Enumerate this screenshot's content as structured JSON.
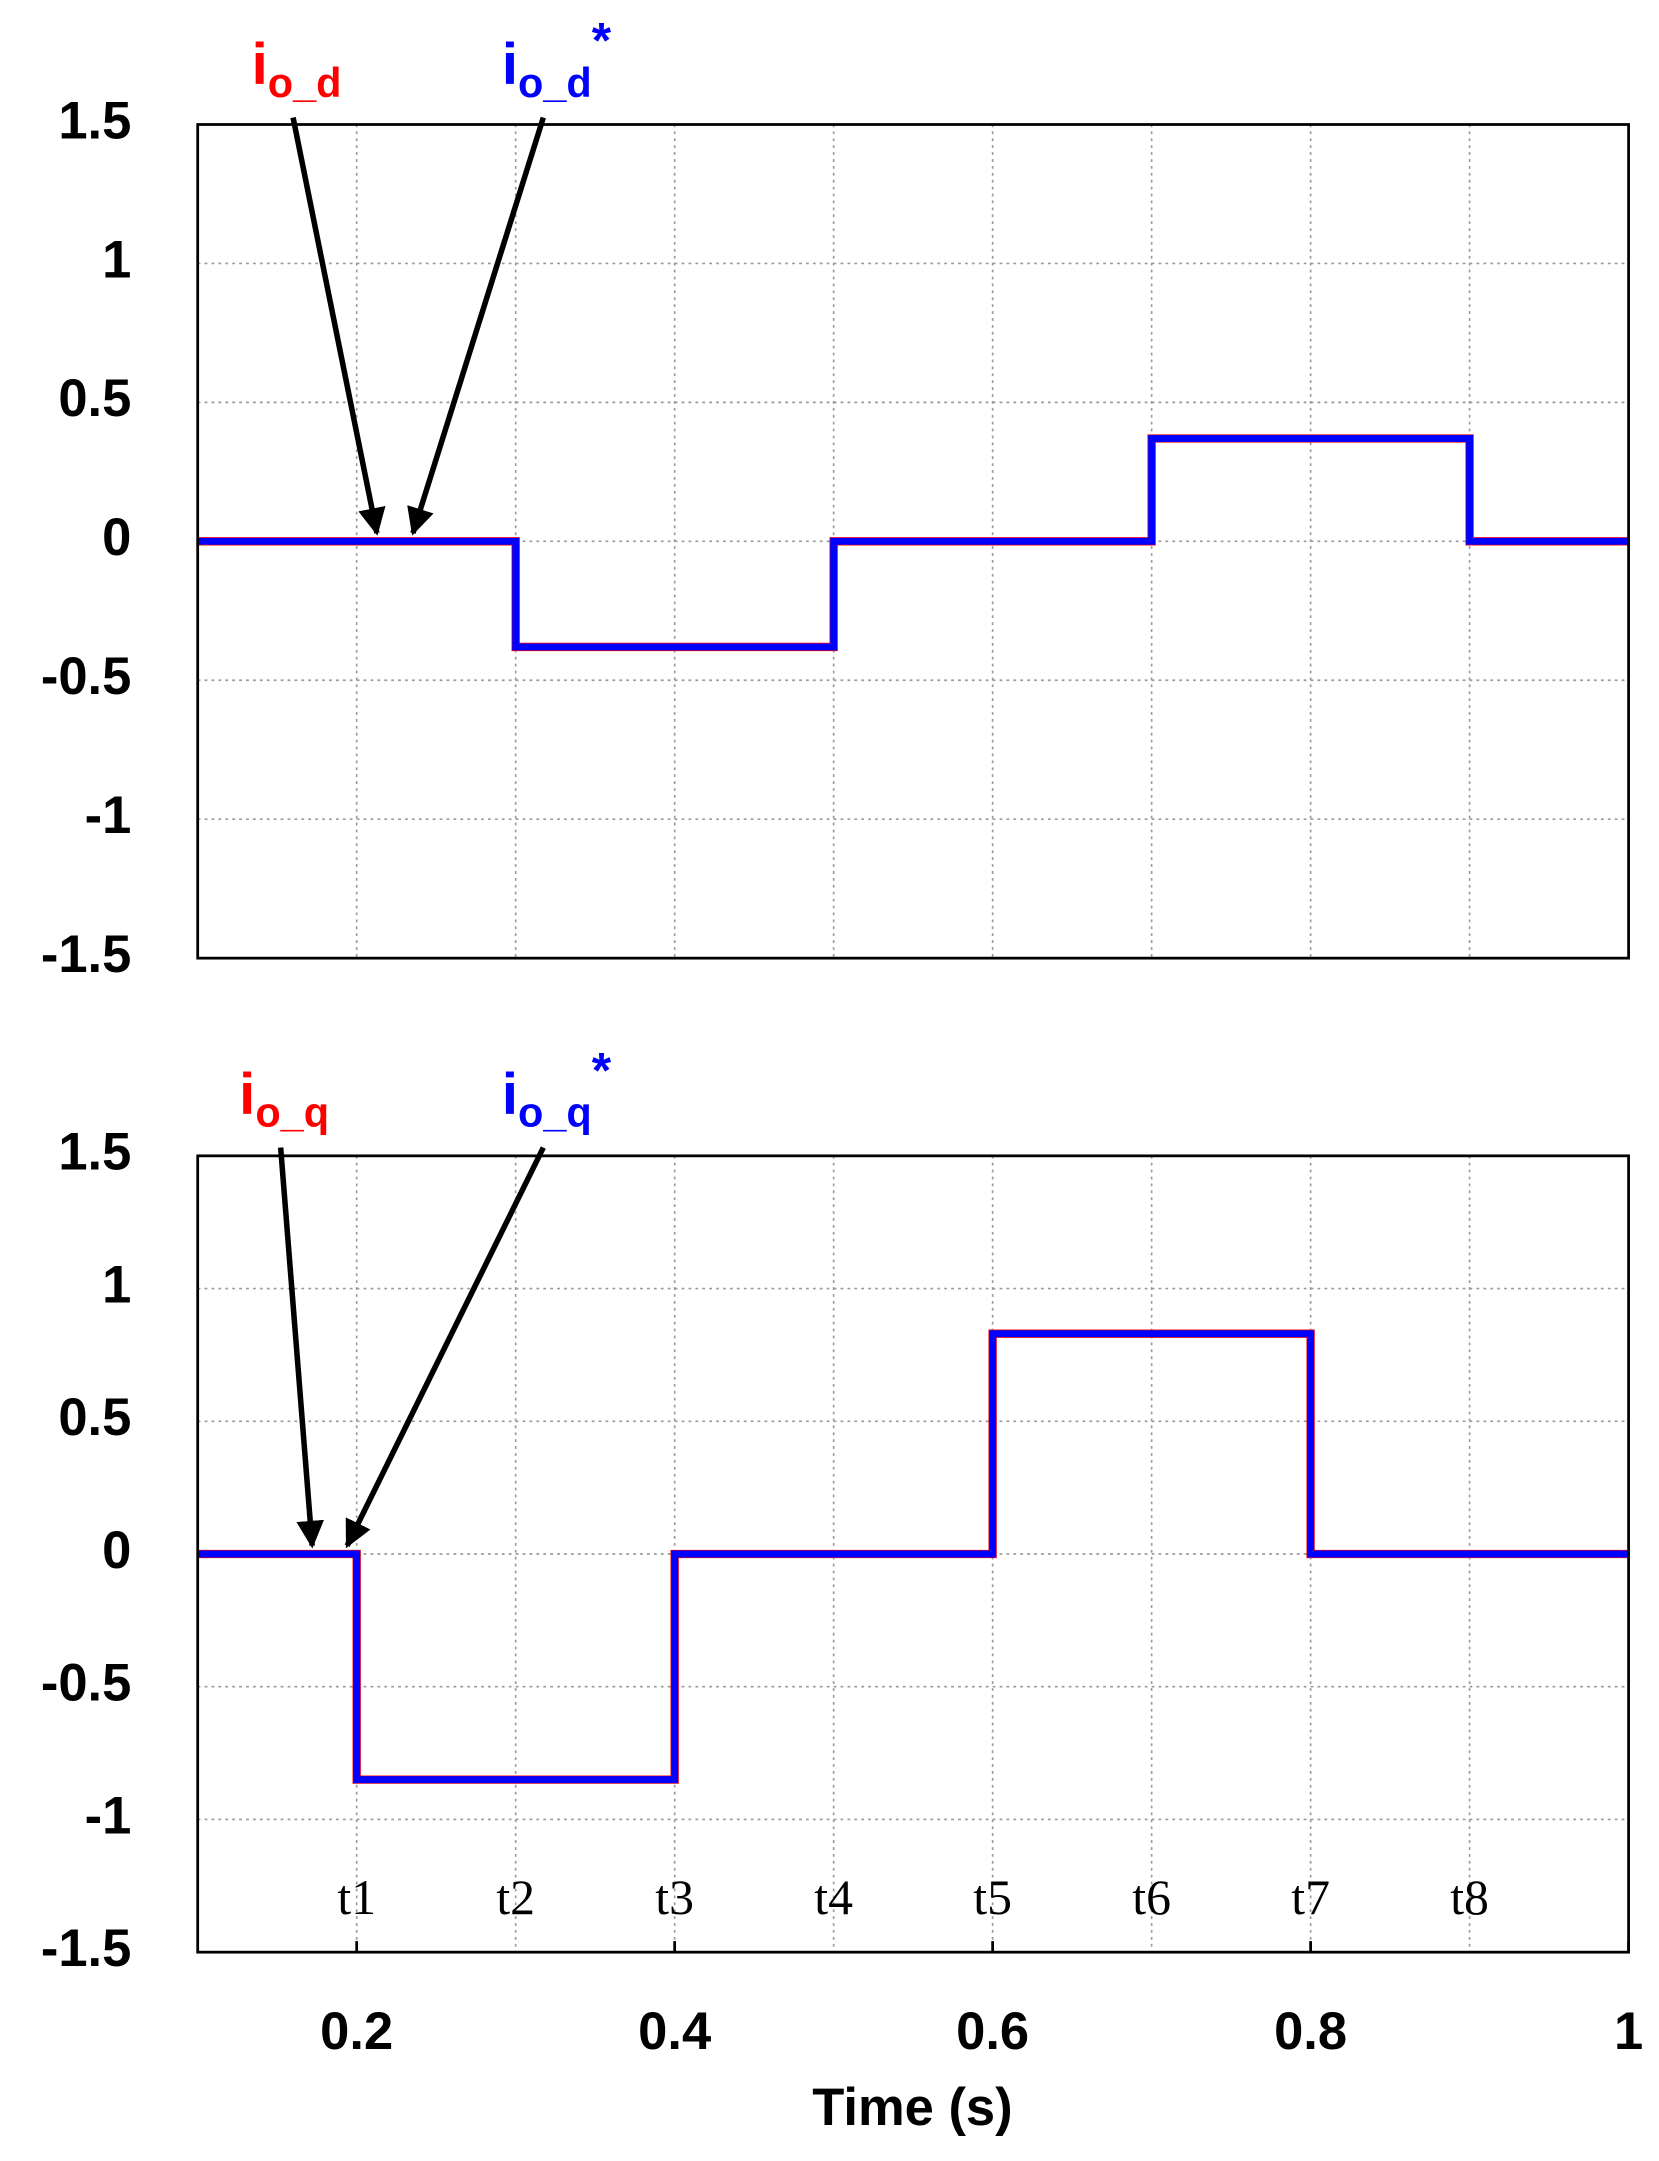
{
  "chart_data": [
    {
      "type": "line",
      "x": [
        0.1,
        0.3,
        0.3,
        0.5,
        0.5,
        0.7,
        0.7,
        0.9,
        0.9,
        1
      ],
      "series": [
        {
          "name": [
            "i",
            "o_d"
          ],
          "color": "#ff0000",
          "values": [
            0,
            0,
            -0.38,
            -0.38,
            0,
            0,
            0.37,
            0.37,
            0,
            0
          ],
          "arrow_to": [
            0.2127,
            0
          ]
        },
        {
          "name": [
            "i",
            "o_d",
            "*"
          ],
          "color": "#0000ff",
          "values": [
            0,
            0,
            -0.38,
            -0.38,
            0,
            0,
            0.37,
            0.37,
            0,
            0
          ],
          "arrow_to": [
            0.2354,
            0
          ]
        }
      ],
      "xlim": [
        0.1,
        1
      ],
      "xgrid": [
        0.2,
        0.3,
        0.4,
        0.5,
        0.6,
        0.7,
        0.8,
        0.9
      ],
      "ylim": [
        -1.5,
        1.5
      ],
      "yticks": [
        -1.5,
        -1,
        -0.5,
        0,
        0.5,
        1,
        1.5
      ],
      "grid": true
    },
    {
      "type": "line",
      "x": [
        0.1,
        0.2,
        0.2,
        0.4,
        0.4,
        0.6,
        0.6,
        0.8,
        0.8,
        1
      ],
      "series": [
        {
          "name": [
            "i",
            "o_q"
          ],
          "color": "#ff0000",
          "values": [
            0,
            0,
            -0.85,
            -0.85,
            0,
            0,
            0.83,
            0.83,
            0,
            0
          ],
          "arrow_to": [
            0.172,
            0
          ]
        },
        {
          "name": [
            "i",
            "o_q",
            "*"
          ],
          "color": "#0000ff",
          "values": [
            0,
            0,
            -0.85,
            -0.85,
            0,
            0,
            0.83,
            0.83,
            0,
            0
          ],
          "arrow_to": [
            0.194,
            0
          ]
        }
      ],
      "xlim": [
        0.1,
        1
      ],
      "xgrid": [
        0.2,
        0.3,
        0.4,
        0.5,
        0.6,
        0.7,
        0.8,
        0.9
      ],
      "xticks": [
        0.2,
        0.4,
        0.6,
        0.8,
        1
      ],
      "xlabel": "Time (s)",
      "ylim": [
        -1.5,
        1.5
      ],
      "yticks": [
        -1.5,
        -1,
        -0.5,
        0,
        0.5,
        1,
        1.5
      ],
      "grid": true,
      "annotations": [
        {
          "text": "t1",
          "x": 0.2
        },
        {
          "text": "t2",
          "x": 0.3
        },
        {
          "text": "t3",
          "x": 0.4
        },
        {
          "text": "t4",
          "x": 0.5
        },
        {
          "text": "t5",
          "x": 0.6
        },
        {
          "text": "t6",
          "x": 0.7
        },
        {
          "text": "t7",
          "x": 0.8
        },
        {
          "text": "t8",
          "x": 0.9
        }
      ]
    }
  ]
}
